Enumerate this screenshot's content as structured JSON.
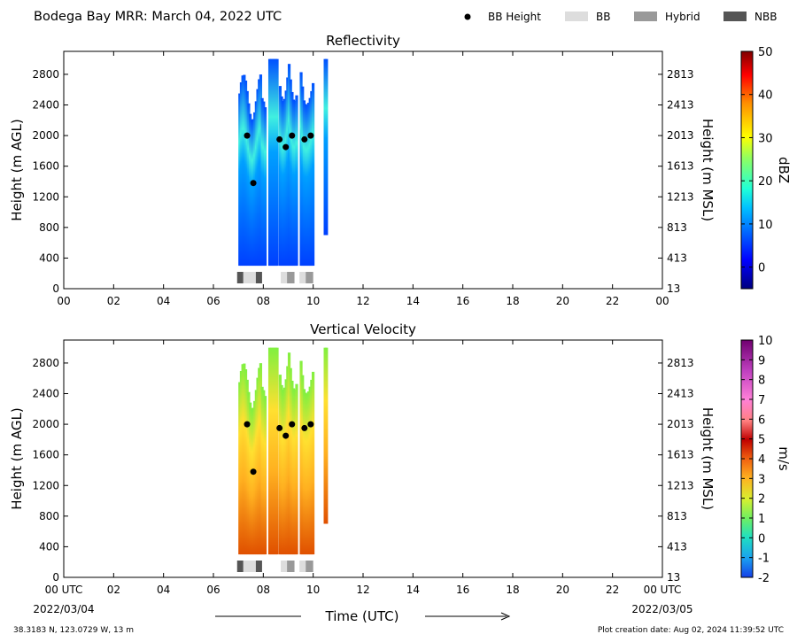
{
  "header": {
    "title": "Bodega Bay MRR:  March 04, 2022 UTC",
    "legend": [
      {
        "label": "BB Height",
        "marker": "dot",
        "color": "#000000"
      },
      {
        "label": "BB",
        "marker": "box",
        "color": "#dddddd"
      },
      {
        "label": "Hybrid",
        "marker": "box",
        "color": "#999999"
      },
      {
        "label": "NBB",
        "marker": "box",
        "color": "#555555"
      }
    ]
  },
  "footer": {
    "location": "38.3183 N, 123.0729 W, 13 m",
    "created": "Plot creation date: Aug 02, 2024 11:39:52 UTC",
    "xlabel": "Time (UTC)",
    "start_date": "2022/03/04",
    "end_date": "2022/03/05"
  },
  "chart_data": [
    {
      "type": "heatmap",
      "title": "Reflectivity",
      "ylabel": "Height (m AGL)",
      "y2label": "Height (m MSL)",
      "xlim": [
        0,
        24
      ],
      "ylim": [
        0,
        3100
      ],
      "x_ticks": [
        "00",
        "02",
        "04",
        "06",
        "08",
        "10",
        "12",
        "14",
        "16",
        "18",
        "20",
        "22",
        "00"
      ],
      "y_ticks": [
        0,
        400,
        800,
        1200,
        1600,
        2000,
        2400,
        2800
      ],
      "y2_ticks": [
        "13",
        "413",
        "813",
        "1213",
        "1613",
        "2013",
        "2413",
        "2813"
      ],
      "colorbar": {
        "label": "dBZ",
        "ticks": [
          "0",
          "10",
          "20",
          "30",
          "40",
          "50"
        ],
        "min": -5,
        "max": 50
      },
      "bb_height": [
        [
          7.35,
          2000
        ],
        [
          7.6,
          1380
        ],
        [
          8.65,
          1950
        ],
        [
          8.9,
          1850
        ],
        [
          9.15,
          2000
        ],
        [
          9.65,
          1950
        ],
        [
          9.9,
          2000
        ]
      ],
      "bb_type": [
        {
          "start": 6.95,
          "end": 7.2,
          "type": "NBB"
        },
        {
          "start": 7.2,
          "end": 7.7,
          "type": "BB"
        },
        {
          "start": 7.7,
          "end": 7.95,
          "type": "NBB"
        },
        {
          "start": 8.7,
          "end": 8.95,
          "type": "BB"
        },
        {
          "start": 8.95,
          "end": 9.25,
          "type": "Hybrid"
        },
        {
          "start": 9.45,
          "end": 9.7,
          "type": "BB"
        },
        {
          "start": 9.7,
          "end": 10.0,
          "type": "Hybrid"
        }
      ]
    },
    {
      "type": "heatmap",
      "title": "Vertical Velocity",
      "ylabel": "Height (m AGL)",
      "y2label": "Height (m MSL)",
      "xlim": [
        0,
        24
      ],
      "ylim": [
        0,
        3100
      ],
      "x_ticks": [
        "00 UTC",
        "02",
        "04",
        "06",
        "08",
        "10",
        "12",
        "14",
        "16",
        "18",
        "20",
        "22",
        "00 UTC"
      ],
      "y_ticks": [
        0,
        400,
        800,
        1200,
        1600,
        2000,
        2400,
        2800
      ],
      "y2_ticks": [
        "13",
        "413",
        "813",
        "1213",
        "1613",
        "2013",
        "2413",
        "2813"
      ],
      "colorbar": {
        "label": "m/s",
        "ticks": [
          "-2",
          "-1",
          "0",
          "1",
          "2",
          "3",
          "4",
          "5",
          "6",
          "7",
          "8",
          "9",
          "10"
        ],
        "min": -2,
        "max": 10
      },
      "bb_height": [
        [
          7.35,
          2000
        ],
        [
          7.6,
          1380
        ],
        [
          8.65,
          1950
        ],
        [
          8.9,
          1850
        ],
        [
          9.15,
          2000
        ],
        [
          9.65,
          1950
        ],
        [
          9.9,
          2000
        ]
      ],
      "bb_type": [
        {
          "start": 6.95,
          "end": 7.2,
          "type": "NBB"
        },
        {
          "start": 7.2,
          "end": 7.7,
          "type": "BB"
        },
        {
          "start": 7.7,
          "end": 7.95,
          "type": "NBB"
        },
        {
          "start": 8.7,
          "end": 8.95,
          "type": "BB"
        },
        {
          "start": 8.95,
          "end": 9.25,
          "type": "Hybrid"
        },
        {
          "start": 9.45,
          "end": 9.7,
          "type": "BB"
        },
        {
          "start": 9.7,
          "end": 10.0,
          "type": "Hybrid"
        }
      ]
    }
  ]
}
